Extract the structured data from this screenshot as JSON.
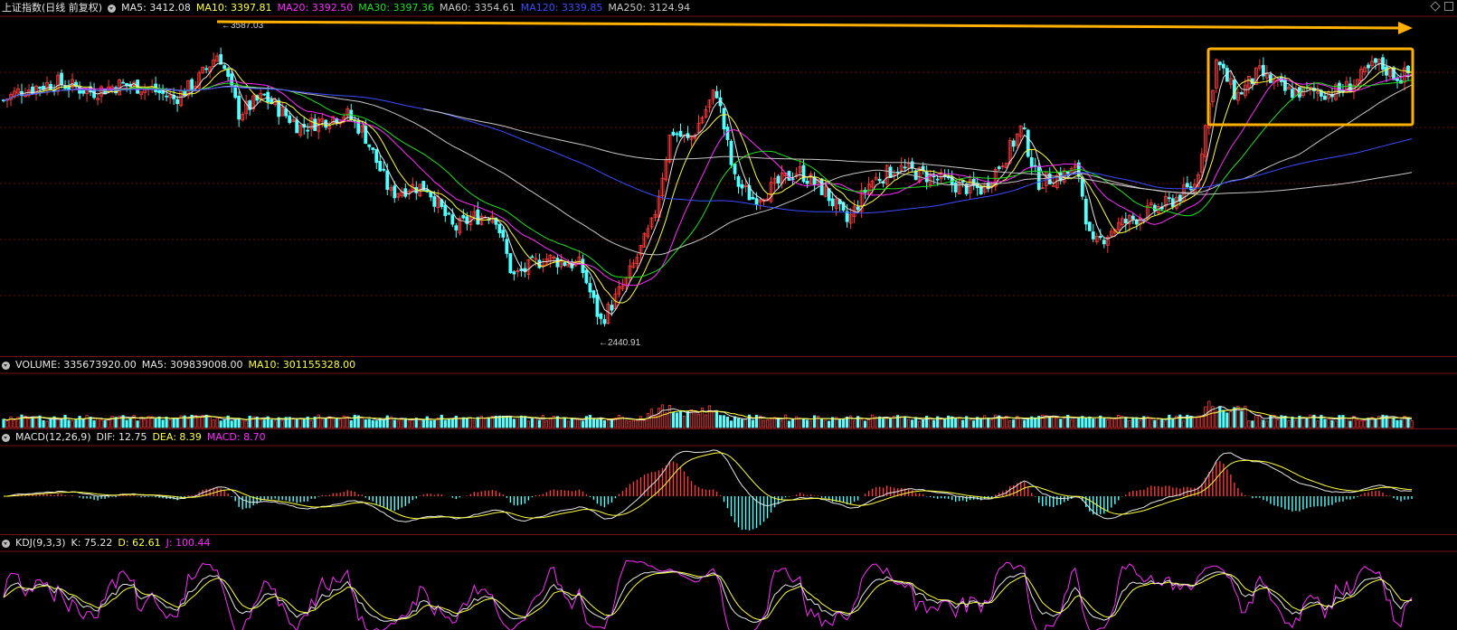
{
  "chart_data": [
    {
      "type": "candlestick",
      "title": "上证指数(日线 前复权)",
      "indicators": [
        {
          "label": "MA5:",
          "value": "3412.08",
          "color": "#e6e6e6"
        },
        {
          "label": "MA10:",
          "value": "3397.81",
          "color": "#ffff3a"
        },
        {
          "label": "MA20:",
          "value": "3392.50",
          "color": "#ff2bff"
        },
        {
          "label": "MA30:",
          "value": "3397.36",
          "color": "#20e020"
        },
        {
          "label": "MA60:",
          "value": "3354.61",
          "color": "#c8c8c8"
        },
        {
          "label": "MA120:",
          "value": "3339.85",
          "color": "#3a4dff"
        },
        {
          "label": "MA250:",
          "value": "3124.94",
          "color": "#c8c8c8"
        }
      ],
      "annotations": {
        "high": "3587.03",
        "low": "2440.91"
      },
      "ylim": [
        2360,
        3700
      ],
      "y_anchor_points": [
        [
          0,
          3380
        ],
        [
          20,
          3425
        ],
        [
          60,
          3460
        ],
        [
          100,
          3420
        ],
        [
          130,
          3450
        ],
        [
          160,
          3440
        ],
        [
          190,
          3390
        ],
        [
          215,
          3460
        ],
        [
          240,
          3587
        ],
        [
          262,
          3330
        ],
        [
          290,
          3400
        ],
        [
          330,
          3270
        ],
        [
          350,
          3295
        ],
        [
          380,
          3330
        ],
        [
          400,
          3250
        ],
        [
          430,
          2990
        ],
        [
          450,
          3020
        ],
        [
          470,
          3020
        ],
        [
          500,
          2840
        ],
        [
          520,
          2890
        ],
        [
          545,
          2910
        ],
        [
          565,
          2640
        ],
        [
          600,
          2720
        ],
        [
          640,
          2690
        ],
        [
          662,
          2450
        ],
        [
          690,
          2620
        ],
        [
          720,
          2870
        ],
        [
          740,
          3260
        ],
        [
          760,
          3210
        ],
        [
          790,
          3430
        ],
        [
          810,
          3050
        ],
        [
          830,
          2970
        ],
        [
          850,
          3010
        ],
        [
          880,
          3090
        ],
        [
          910,
          3000
        ],
        [
          935,
          2870
        ],
        [
          960,
          3040
        ],
        [
          990,
          3100
        ],
        [
          1020,
          3070
        ],
        [
          1060,
          3020
        ],
        [
          1085,
          3010
        ],
        [
          1110,
          3150
        ],
        [
          1128,
          3270
        ],
        [
          1145,
          3040
        ],
        [
          1165,
          3060
        ],
        [
          1190,
          3090
        ],
        [
          1205,
          2760
        ],
        [
          1230,
          2850
        ],
        [
          1260,
          2900
        ],
        [
          1290,
          2950
        ],
        [
          1320,
          3030
        ],
        [
          1343,
          3550
        ],
        [
          1365,
          3400
        ],
        [
          1390,
          3500
        ],
        [
          1420,
          3420
        ],
        [
          1450,
          3420
        ],
        [
          1480,
          3420
        ],
        [
          1500,
          3470
        ],
        [
          1520,
          3540
        ],
        [
          1545,
          3480
        ],
        [
          1561,
          3510
        ]
      ]
    },
    {
      "type": "bar",
      "title": "VOLUME:",
      "indicators": [
        {
          "label": "VOLUME:",
          "value": "335673920.00",
          "color": "#e6e6e6"
        },
        {
          "label": "MA5:",
          "value": "309839008.00",
          "color": "#e6e6e6"
        },
        {
          "label": "MA10:",
          "value": "301155328.00",
          "color": "#ffff3a"
        }
      ]
    },
    {
      "type": "bar",
      "title": "MACD(12,26,9)",
      "indicators": [
        {
          "label": "DIF:",
          "value": "12.75",
          "color": "#e6e6e6"
        },
        {
          "label": "DEA:",
          "value": "8.39",
          "color": "#ffff3a"
        },
        {
          "label": "MACD:",
          "value": "8.70",
          "color": "#ff2bff"
        }
      ]
    },
    {
      "type": "line",
      "title": "KDJ(9,3,3)",
      "indicators": [
        {
          "label": "K:",
          "value": "75.22",
          "color": "#e6e6e6"
        },
        {
          "label": "D:",
          "value": "62.61",
          "color": "#ffff3a"
        },
        {
          "label": "J:",
          "value": "100.44",
          "color": "#ff2bff"
        }
      ]
    }
  ]
}
